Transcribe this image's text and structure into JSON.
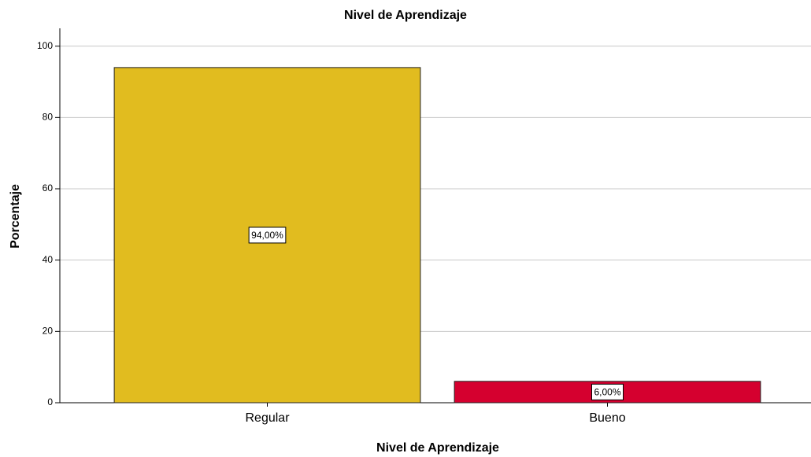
{
  "chart_data": {
    "type": "bar",
    "title": "Nivel de Aprendizaje",
    "x_label": "Nivel de Aprendizaje",
    "y_label": "Porcentaje",
    "categories": [
      "Regular",
      "Bueno"
    ],
    "values": [
      94,
      6
    ],
    "value_labels": [
      "94,00%",
      "6,00%"
    ],
    "colors": [
      "#e1bc1f",
      "#d5002f"
    ],
    "ylim": [
      0,
      105
    ],
    "yticks": [
      0,
      20,
      40,
      60,
      80,
      100
    ],
    "grid": true
  }
}
